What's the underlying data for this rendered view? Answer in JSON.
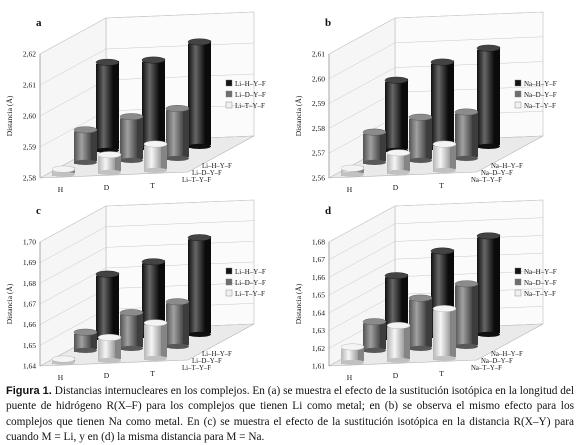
{
  "figure": {
    "caption_label": "Figura 1.",
    "caption_text": "Distancias internucleares en los complejos. En (a) se muestra el efecto de la sustitución isotópica en la longitud del puente de hidrógeno R(X–F) para los complejos que tienen Li como metal; en (b) se observa el mismo efecto para los complejos que tienen Na como metal. En (c) se muestra el efecto de la sustitución isotópica en la distancia R(X–Y) para cuando M = Li, y en (d) la misma distancia para M = Na."
  },
  "chart_data": [
    {
      "type": "bar",
      "panel_label": "a",
      "ylabel": "Distancia (Å)",
      "yticks": [
        "2,58",
        "2,59",
        "2,60",
        "2,61",
        "2,62"
      ],
      "ylim": [
        2.58,
        2.62
      ],
      "categories": [
        "H",
        "D",
        "T"
      ],
      "series": [
        {
          "name": "Li–T–Y–F",
          "values": [
            2.5817,
            2.5857,
            2.5885
          ]
        },
        {
          "name": "Li–D–Y–F",
          "values": [
            2.5905,
            2.5941,
            2.5961
          ]
        },
        {
          "name": "Li–H–Y–F",
          "values": [
            2.6084,
            2.6085,
            2.6137
          ]
        }
      ],
      "depth_labels": [
        "Li–H–Y–F",
        "Li–D–Y–F",
        "Li–T–Y–F"
      ],
      "legend": "right",
      "colors": [
        "#f1f1f1",
        "#6e6e6e",
        "#141414"
      ]
    },
    {
      "type": "bar",
      "panel_label": "b",
      "ylabel": "Distancia (Å)",
      "yticks": [
        "2,56",
        "2,57",
        "2,58",
        "2,59",
        "2,60",
        "2,61"
      ],
      "ylim": [
        2.56,
        2.61
      ],
      "categories": [
        "H",
        "D",
        "T"
      ],
      "series": [
        {
          "name": "Na–T–Y–F",
          "values": [
            2.5625,
            2.5679,
            2.5706
          ]
        },
        {
          "name": "Na–D–Y–F",
          "values": [
            2.5722,
            2.5774,
            2.5787
          ]
        },
        {
          "name": "Na–H–Y–F",
          "values": [
            2.5883,
            2.5948,
            2.5996
          ]
        }
      ],
      "depth_labels": [
        "Na–H–Y–F",
        "Na–D–Y–F",
        "Na–T–Y–F"
      ],
      "legend": "right",
      "colors": [
        "#f1f1f1",
        "#6e6e6e",
        "#141414"
      ]
    },
    {
      "type": "bar",
      "panel_label": "c",
      "ylabel": "Distancia (Å)",
      "yticks": [
        "1,64",
        "1,65",
        "1,66",
        "1,67",
        "1,68",
        "1,69",
        "1,70"
      ],
      "ylim": [
        1.64,
        1.7
      ],
      "categories": [
        "H",
        "D",
        "T"
      ],
      "series": [
        {
          "name": "Li–T–Y–F",
          "values": [
            1.6416,
            1.6511,
            1.6572
          ]
        },
        {
          "name": "Li–D–Y–F",
          "values": [
            1.6488,
            1.6573,
            1.6616
          ]
        },
        {
          "name": "Li–H–Y–F",
          "values": [
            1.6711,
            1.6761,
            1.6868
          ]
        }
      ],
      "depth_labels": [
        "Li–H–Y–F",
        "Li–D–Y–F",
        "Li–T–Y–F"
      ],
      "legend": "right",
      "colors": [
        "#f1f1f1",
        "#6e6e6e",
        "#141414"
      ]
    },
    {
      "type": "bar",
      "panel_label": "d",
      "ylabel": "Distancia (Å)",
      "yticks": [
        "1,61",
        "1,62",
        "1,63",
        "1,64",
        "1,65",
        "1,66",
        "1,67",
        "1,68"
      ],
      "ylim": [
        1.61,
        1.68
      ],
      "categories": [
        "H",
        "D",
        "T"
      ],
      "series": [
        {
          "name": "Na–T–Y–F",
          "values": [
            1.6187,
            1.6297,
            1.6381
          ]
        },
        {
          "name": "Na–D–Y–F",
          "values": [
            1.6262,
            1.6384,
            1.6453
          ]
        },
        {
          "name": "Na–H–Y–F",
          "values": [
            1.6454,
            1.6582,
            1.6656
          ]
        }
      ],
      "depth_labels": [
        "Na–H–Y–F",
        "Na–D–Y–F",
        "Na–T–Y–F"
      ],
      "legend": "right",
      "colors": [
        "#f1f1f1",
        "#6e6e6e",
        "#141414"
      ]
    }
  ]
}
